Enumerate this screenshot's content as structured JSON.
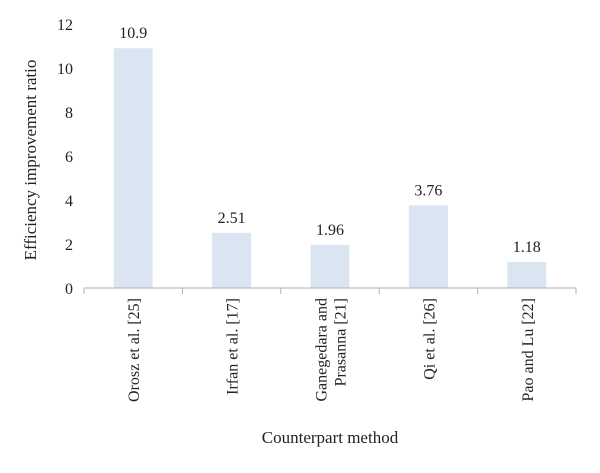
{
  "chart_data": {
    "type": "bar",
    "title": "",
    "xlabel": "Counterpart method",
    "ylabel": "Efficiency improvement ratio",
    "categories": [
      "Orosz et al. [25]",
      "Irfan et al. [17]",
      "Ganegedara and Prasanna [21]",
      "Qi et al. [26]",
      "Pao and Lu [22]"
    ],
    "category_lines": [
      [
        "Orosz et al. [25]"
      ],
      [
        "Irfan et al. [17]"
      ],
      [
        "Ganegedara and",
        "Prasanna [21]"
      ],
      [
        "Qi et al. [26]"
      ],
      [
        "Pao and Lu [22]"
      ]
    ],
    "values": [
      10.9,
      2.51,
      1.96,
      3.76,
      1.18
    ],
    "value_labels": [
      "10.9",
      "2.51",
      "1.96",
      "3.76",
      "1.18"
    ],
    "yticks": [
      0,
      2,
      4,
      6,
      8,
      10,
      12
    ],
    "ylim": [
      0,
      12
    ],
    "grid": false,
    "legend": "none",
    "colors": {
      "bar": "#dbe5f2",
      "axis": "#b0b0b0",
      "text": "#222222"
    }
  }
}
